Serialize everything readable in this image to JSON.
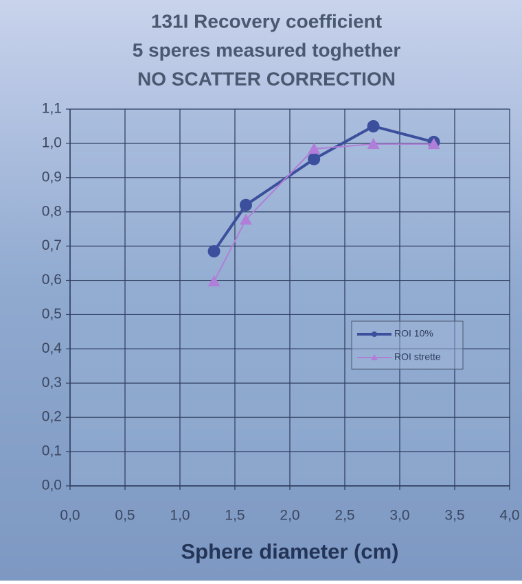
{
  "chart_data": {
    "type": "line",
    "title": [
      "131I Recovery coefficient",
      "5 speres measured toghether",
      "NO SCATTER CORRECTION"
    ],
    "x_label": "Sphere diameter (cm)",
    "x": [
      1.31,
      1.6,
      2.22,
      2.76,
      3.31
    ],
    "series": [
      {
        "name": "ROI 10%",
        "color": "#3b4f9c",
        "marker": "circle",
        "values": [
          0.685,
          0.82,
          0.954,
          1.05,
          1.004
        ]
      },
      {
        "name": "ROI strette",
        "color": "#b07ed8",
        "marker": "triangle",
        "values": [
          0.597,
          0.777,
          0.984,
          0.998,
          0.998
        ]
      }
    ],
    "xlim": [
      0,
      4
    ],
    "xticks": [
      {
        "value": 0,
        "label": "0,0"
      },
      {
        "value": 0.5,
        "label": "0,5"
      },
      {
        "value": 1,
        "label": "1,0"
      },
      {
        "value": 1.5,
        "label": "1,5"
      },
      {
        "value": 2,
        "label": "2,0"
      },
      {
        "value": 2.5,
        "label": "2,5"
      },
      {
        "value": 3,
        "label": "3,0"
      },
      {
        "value": 3.5,
        "label": "3,5"
      },
      {
        "value": 4,
        "label": "4,0"
      }
    ],
    "ylim": [
      0,
      1.1
    ],
    "yticks": [
      {
        "value": 0,
        "label": "0,0"
      },
      {
        "value": 0.1,
        "label": "0,1"
      },
      {
        "value": 0.2,
        "label": "0,2"
      },
      {
        "value": 0.3,
        "label": "0,3"
      },
      {
        "value": 0.4,
        "label": "0,4"
      },
      {
        "value": 0.5,
        "label": "0,5"
      },
      {
        "value": 0.6,
        "label": "0,6"
      },
      {
        "value": 0.7,
        "label": "0,7"
      },
      {
        "value": 0.8,
        "label": "0,8"
      },
      {
        "value": 0.9,
        "label": "0,9"
      },
      {
        "value": 1,
        "label": "1,0"
      },
      {
        "value": 1.1,
        "label": "1,1"
      }
    ],
    "grid": true,
    "legend": "right"
  }
}
